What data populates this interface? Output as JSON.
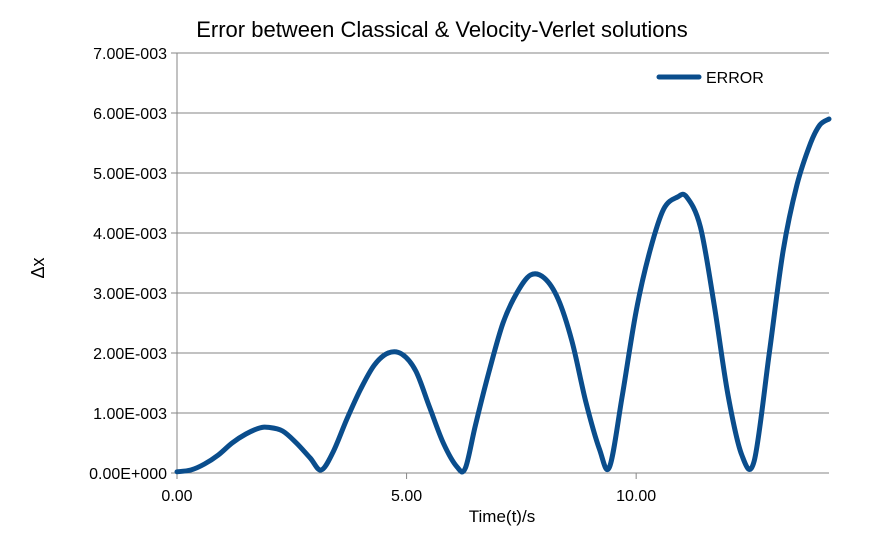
{
  "chart_data": {
    "type": "line",
    "title": "Error between Classical & Velocity-Verlet solutions",
    "xlabel": "Time(t)/s",
    "ylabel": "Δx",
    "xlim": [
      0,
      14.2
    ],
    "ylim": [
      0,
      0.007
    ],
    "xticks": [
      0,
      5,
      10
    ],
    "xtick_labels": [
      "0.00",
      "5.00",
      "10.00"
    ],
    "yticks": [
      0,
      0.001,
      0.002,
      0.003,
      0.004,
      0.005,
      0.006,
      0.007
    ],
    "ytick_labels": [
      "0.00E+000",
      "1.00E-003",
      "2.00E-003",
      "3.00E-003",
      "4.00E-003",
      "5.00E-003",
      "6.00E-003",
      "7.00E-003"
    ],
    "grid": "horizontal",
    "legend": "top-right",
    "series": [
      {
        "name": "ERROR",
        "color": "#0a4d8c",
        "x": [
          0,
          0.3,
          0.6,
          0.9,
          1.2,
          1.5,
          1.8,
          2.0,
          2.3,
          2.6,
          2.9,
          3.14,
          3.4,
          3.7,
          4.0,
          4.3,
          4.6,
          4.9,
          5.2,
          5.5,
          5.8,
          6.1,
          6.28,
          6.5,
          6.8,
          7.1,
          7.4,
          7.7,
          8.0,
          8.3,
          8.6,
          8.9,
          9.2,
          9.42,
          9.7,
          10.0,
          10.3,
          10.6,
          10.9,
          11.1,
          11.4,
          11.7,
          12.0,
          12.3,
          12.57,
          12.9,
          13.2,
          13.5,
          13.8,
          14.0,
          14.2
        ],
        "y": [
          2e-05,
          5e-05,
          0.00015,
          0.0003,
          0.0005,
          0.00065,
          0.00075,
          0.00076,
          0.0007,
          0.0005,
          0.00025,
          5e-05,
          0.00035,
          0.0009,
          0.0014,
          0.0018,
          0.002,
          0.00198,
          0.0017,
          0.0011,
          0.0005,
          0.0001,
          8e-05,
          0.0008,
          0.0017,
          0.0025,
          0.003,
          0.0033,
          0.00325,
          0.0029,
          0.0022,
          0.0012,
          0.0004,
          0.0001,
          0.0013,
          0.0027,
          0.0037,
          0.0044,
          0.0046,
          0.0046,
          0.0041,
          0.0028,
          0.0013,
          0.0003,
          0.0002,
          0.002,
          0.0037,
          0.0048,
          0.0055,
          0.0058,
          0.0059
        ]
      }
    ]
  }
}
